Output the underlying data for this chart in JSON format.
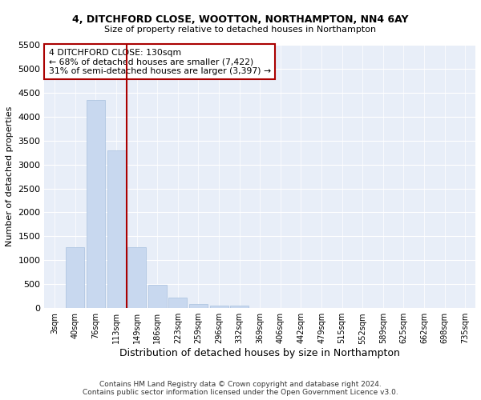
{
  "title_line1": "4, DITCHFORD CLOSE, WOOTTON, NORTHAMPTON, NN4 6AY",
  "title_line2": "Size of property relative to detached houses in Northampton",
  "xlabel": "Distribution of detached houses by size in Northampton",
  "ylabel": "Number of detached properties",
  "categories": [
    "3sqm",
    "40sqm",
    "76sqm",
    "113sqm",
    "149sqm",
    "186sqm",
    "223sqm",
    "259sqm",
    "296sqm",
    "332sqm",
    "369sqm",
    "406sqm",
    "442sqm",
    "479sqm",
    "515sqm",
    "552sqm",
    "589sqm",
    "625sqm",
    "662sqm",
    "698sqm",
    "735sqm"
  ],
  "values": [
    0,
    1270,
    4340,
    3300,
    1280,
    490,
    220,
    90,
    60,
    55,
    0,
    0,
    0,
    0,
    0,
    0,
    0,
    0,
    0,
    0,
    0
  ],
  "bar_color": "#c8d8ef",
  "bar_edgecolor": "#a8c0de",
  "vline_color": "#aa0000",
  "ylim": [
    0,
    5500
  ],
  "yticks": [
    0,
    500,
    1000,
    1500,
    2000,
    2500,
    3000,
    3500,
    4000,
    4500,
    5000,
    5500
  ],
  "annotation_title": "4 DITCHFORD CLOSE: 130sqm",
  "annotation_line1": "← 68% of detached houses are smaller (7,422)",
  "annotation_line2": "31% of semi-detached houses are larger (3,397) →",
  "annotation_box_color": "#aa0000",
  "background_color": "#e8eef8",
  "footer_line1": "Contains HM Land Registry data © Crown copyright and database right 2024.",
  "footer_line2": "Contains public sector information licensed under the Open Government Licence v3.0."
}
